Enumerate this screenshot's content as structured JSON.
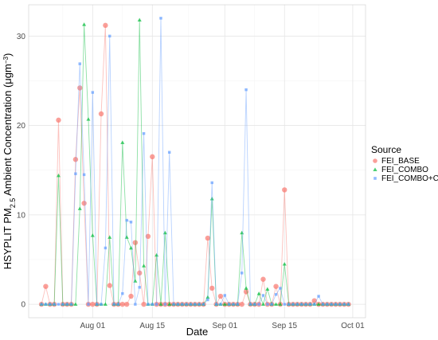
{
  "chart_data": {
    "type": "line",
    "title": "",
    "xlabel": "Date",
    "ylabel_main": "HSYPLIT PM",
    "ylabel_sub": "2.5",
    "ylabel_rest": " Ambient Concentration (μgm",
    "ylabel_sup": "−3",
    "ylabel_end": ")",
    "xlim": [
      "2014-07-17",
      "2014-10-04"
    ],
    "ylim": [
      -1.5,
      33.5
    ],
    "x_ticks": [
      {
        "date": "2014-08-01",
        "label": "Aug 01"
      },
      {
        "date": "2014-08-15",
        "label": "Aug 15"
      },
      {
        "date": "2014-09-01",
        "label": "Sep 01"
      },
      {
        "date": "2014-09-15",
        "label": "Sep 15"
      },
      {
        "date": "2014-10-01",
        "label": "Oct 01"
      }
    ],
    "y_ticks": [
      0,
      10,
      20,
      30
    ],
    "grid": true,
    "legend": {
      "title": "Source",
      "placement": "right"
    },
    "series": [
      {
        "name": "FEI_BASE",
        "color": "#F8766D",
        "marker": "circle",
        "x": [
          "2014-07-20",
          "2014-07-21",
          "2014-07-22",
          "2014-07-23",
          "2014-07-24",
          "2014-07-25",
          "2014-07-26",
          "2014-07-27",
          "2014-07-28",
          "2014-07-29",
          "2014-07-30",
          "2014-07-31",
          "2014-08-01",
          "2014-08-02",
          "2014-08-03",
          "2014-08-04",
          "2014-08-05",
          "2014-08-06",
          "2014-08-07",
          "2014-08-08",
          "2014-08-09",
          "2014-08-10",
          "2014-08-11",
          "2014-08-12",
          "2014-08-13",
          "2014-08-14",
          "2014-08-15",
          "2014-08-16",
          "2014-08-17",
          "2014-08-18",
          "2014-08-19",
          "2014-08-20",
          "2014-08-21",
          "2014-08-22",
          "2014-08-23",
          "2014-08-24",
          "2014-08-25",
          "2014-08-26",
          "2014-08-27",
          "2014-08-28",
          "2014-08-29",
          "2014-08-30",
          "2014-08-31",
          "2014-09-01",
          "2014-09-02",
          "2014-09-03",
          "2014-09-04",
          "2014-09-05",
          "2014-09-06",
          "2014-09-07",
          "2014-09-08",
          "2014-09-09",
          "2014-09-10",
          "2014-09-11",
          "2014-09-12",
          "2014-09-13",
          "2014-09-14",
          "2014-09-15",
          "2014-09-16",
          "2014-09-17",
          "2014-09-18",
          "2014-09-19",
          "2014-09-20",
          "2014-09-21",
          "2014-09-22",
          "2014-09-23",
          "2014-09-24",
          "2014-09-25",
          "2014-09-26",
          "2014-09-27",
          "2014-09-28",
          "2014-09-29",
          "2014-09-30"
        ],
        "y": [
          0,
          2,
          0,
          0,
          20.6,
          0,
          0,
          0,
          16.2,
          24.2,
          11.3,
          0,
          0,
          0,
          21.3,
          31.2,
          2.1,
          0,
          0,
          0,
          0,
          0.9,
          6.9,
          3.5,
          0,
          7.6,
          16.5,
          0,
          0,
          0,
          0,
          0,
          0,
          0,
          0,
          0,
          0,
          0,
          0,
          7.4,
          1.8,
          0,
          0.9,
          0,
          0,
          0,
          0,
          0,
          1.4,
          0,
          0,
          0,
          2.8,
          0,
          0,
          2,
          0,
          12.8,
          0,
          0,
          0,
          0,
          0,
          0,
          0.4,
          0,
          0,
          0,
          0,
          0,
          0,
          0,
          0
        ]
      },
      {
        "name": "FEI_COMBO",
        "color": "#00BA38",
        "marker": "triangle",
        "x": [
          "2014-07-20",
          "2014-07-21",
          "2014-07-22",
          "2014-07-23",
          "2014-07-24",
          "2014-07-25",
          "2014-07-26",
          "2014-07-27",
          "2014-07-28",
          "2014-07-29",
          "2014-07-30",
          "2014-07-31",
          "2014-08-01",
          "2014-08-02",
          "2014-08-03",
          "2014-08-04",
          "2014-08-05",
          "2014-08-06",
          "2014-08-07",
          "2014-08-08",
          "2014-08-09",
          "2014-08-10",
          "2014-08-11",
          "2014-08-12",
          "2014-08-13",
          "2014-08-14",
          "2014-08-15",
          "2014-08-16",
          "2014-08-17",
          "2014-08-18",
          "2014-08-19",
          "2014-08-20",
          "2014-08-21",
          "2014-08-22",
          "2014-08-23",
          "2014-08-24",
          "2014-08-25",
          "2014-08-26",
          "2014-08-27",
          "2014-08-28",
          "2014-08-29",
          "2014-08-30",
          "2014-08-31",
          "2014-09-01",
          "2014-09-02",
          "2014-09-03",
          "2014-09-04",
          "2014-09-05",
          "2014-09-06",
          "2014-09-07",
          "2014-09-08",
          "2014-09-09",
          "2014-09-10",
          "2014-09-11",
          "2014-09-12",
          "2014-09-13",
          "2014-09-14",
          "2014-09-15",
          "2014-09-16",
          "2014-09-17",
          "2014-09-18",
          "2014-09-19",
          "2014-09-20",
          "2014-09-21",
          "2014-09-22",
          "2014-09-23",
          "2014-09-24",
          "2014-09-25",
          "2014-09-26",
          "2014-09-27",
          "2014-09-28",
          "2014-09-29",
          "2014-09-30"
        ],
        "y": [
          0,
          0,
          0,
          0,
          14.4,
          0,
          0,
          0,
          0,
          10.7,
          31.3,
          20.7,
          7.7,
          0,
          0,
          0,
          7.5,
          0,
          0,
          18.1,
          7.5,
          6.3,
          2.6,
          31.8,
          4.3,
          0,
          0,
          5.5,
          0,
          8,
          0,
          0,
          0,
          0,
          0,
          0,
          0,
          0,
          0,
          0.8,
          11.8,
          0,
          0,
          0,
          0,
          0,
          0,
          8,
          1.8,
          0,
          0,
          1.2,
          0,
          1.7,
          0,
          0,
          0,
          4.5,
          0,
          0,
          0,
          0,
          0,
          0,
          0,
          0,
          0,
          0,
          0,
          0,
          0,
          0,
          0
        ]
      },
      {
        "name": "FEI_COMBO+CC",
        "color": "#619CFF",
        "marker": "square",
        "x": [
          "2014-07-20",
          "2014-07-21",
          "2014-07-22",
          "2014-07-23",
          "2014-07-24",
          "2014-07-25",
          "2014-07-26",
          "2014-07-27",
          "2014-07-28",
          "2014-07-29",
          "2014-07-30",
          "2014-07-31",
          "2014-08-01",
          "2014-08-02",
          "2014-08-03",
          "2014-08-04",
          "2014-08-05",
          "2014-08-06",
          "2014-08-07",
          "2014-08-08",
          "2014-08-09",
          "2014-08-10",
          "2014-08-11",
          "2014-08-12",
          "2014-08-13",
          "2014-08-14",
          "2014-08-15",
          "2014-08-16",
          "2014-08-17",
          "2014-08-18",
          "2014-08-19",
          "2014-08-20",
          "2014-08-21",
          "2014-08-22",
          "2014-08-23",
          "2014-08-24",
          "2014-08-25",
          "2014-08-26",
          "2014-08-27",
          "2014-08-28",
          "2014-08-29",
          "2014-08-30",
          "2014-08-31",
          "2014-09-01",
          "2014-09-02",
          "2014-09-03",
          "2014-09-04",
          "2014-09-05",
          "2014-09-06",
          "2014-09-07",
          "2014-09-08",
          "2014-09-09",
          "2014-09-10",
          "2014-09-11",
          "2014-09-12",
          "2014-09-13",
          "2014-09-14",
          "2014-09-15",
          "2014-09-16",
          "2014-09-17",
          "2014-09-18",
          "2014-09-19",
          "2014-09-20",
          "2014-09-21",
          "2014-09-22",
          "2014-09-23",
          "2014-09-24",
          "2014-09-25",
          "2014-09-26",
          "2014-09-27",
          "2014-09-28",
          "2014-09-29",
          "2014-09-30"
        ],
        "y": [
          0,
          0,
          0,
          0,
          0,
          0,
          0,
          0,
          14.6,
          26.9,
          14.5,
          0,
          23.7,
          0,
          0,
          6.3,
          30,
          0,
          0,
          1.2,
          9.4,
          9.2,
          0,
          1.9,
          19.1,
          0,
          0,
          0,
          32,
          0,
          17,
          0,
          0,
          0,
          0,
          0,
          0,
          0,
          0,
          0.5,
          13.6,
          0,
          0,
          1,
          0,
          0,
          0,
          3.5,
          24,
          0,
          0,
          0,
          1,
          0,
          0,
          1.1,
          1.8,
          0,
          0,
          0,
          0,
          0,
          0,
          0,
          0,
          0.9,
          0,
          0,
          0,
          0,
          0,
          0,
          0
        ]
      }
    ]
  }
}
